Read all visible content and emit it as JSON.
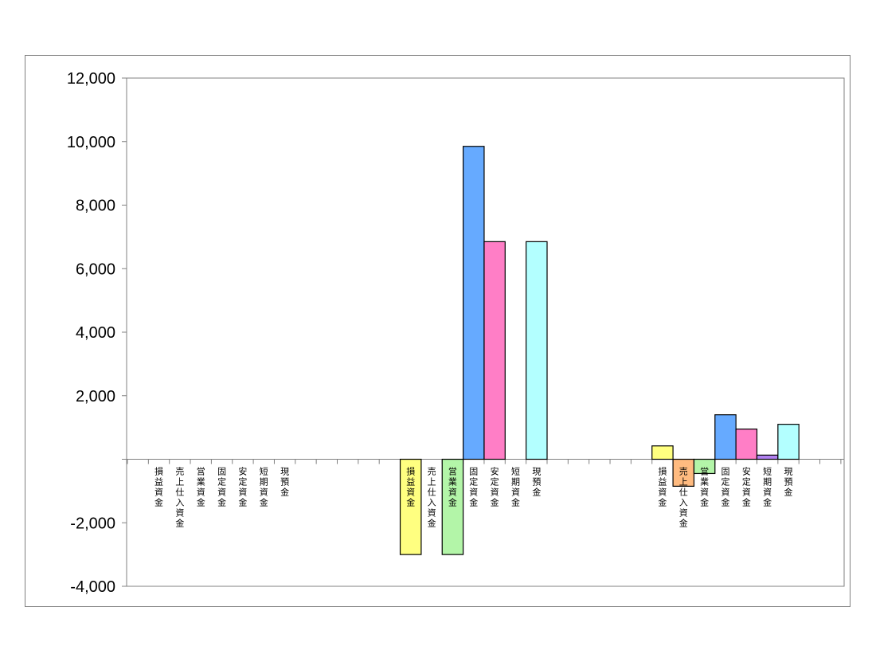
{
  "chart_data": {
    "type": "bar",
    "title": "",
    "xlabel": "",
    "ylabel": "",
    "ylim": [
      -4000,
      12000
    ],
    "yticks": [
      -4000,
      -2000,
      0,
      2000,
      4000,
      6000,
      8000,
      10000,
      12000
    ],
    "ytick_labels": [
      "-4,000",
      "-2,000",
      "",
      "2,000",
      "4,000",
      "6,000",
      "8,000",
      "10,000",
      "12,000"
    ],
    "grid": false,
    "legend": "none",
    "categories": [
      "損益資金",
      "売上仕入資金",
      "営業資金",
      "固定資金",
      "安定資金",
      "短期資金",
      "現預金"
    ],
    "colors": [
      "#ffff80",
      "#ffbb80",
      "#b3f5a8",
      "#66aaff",
      "#ff7ec6",
      "#b080f0",
      "#b3ffff"
    ],
    "groups": [
      {
        "values": [
          0,
          0,
          0,
          0,
          0,
          0,
          0
        ]
      },
      {
        "values": [
          -3000,
          0,
          -3000,
          9850,
          6850,
          0,
          6850
        ]
      },
      {
        "values": [
          420,
          -850,
          -450,
          1400,
          950,
          130,
          1100
        ]
      }
    ]
  }
}
